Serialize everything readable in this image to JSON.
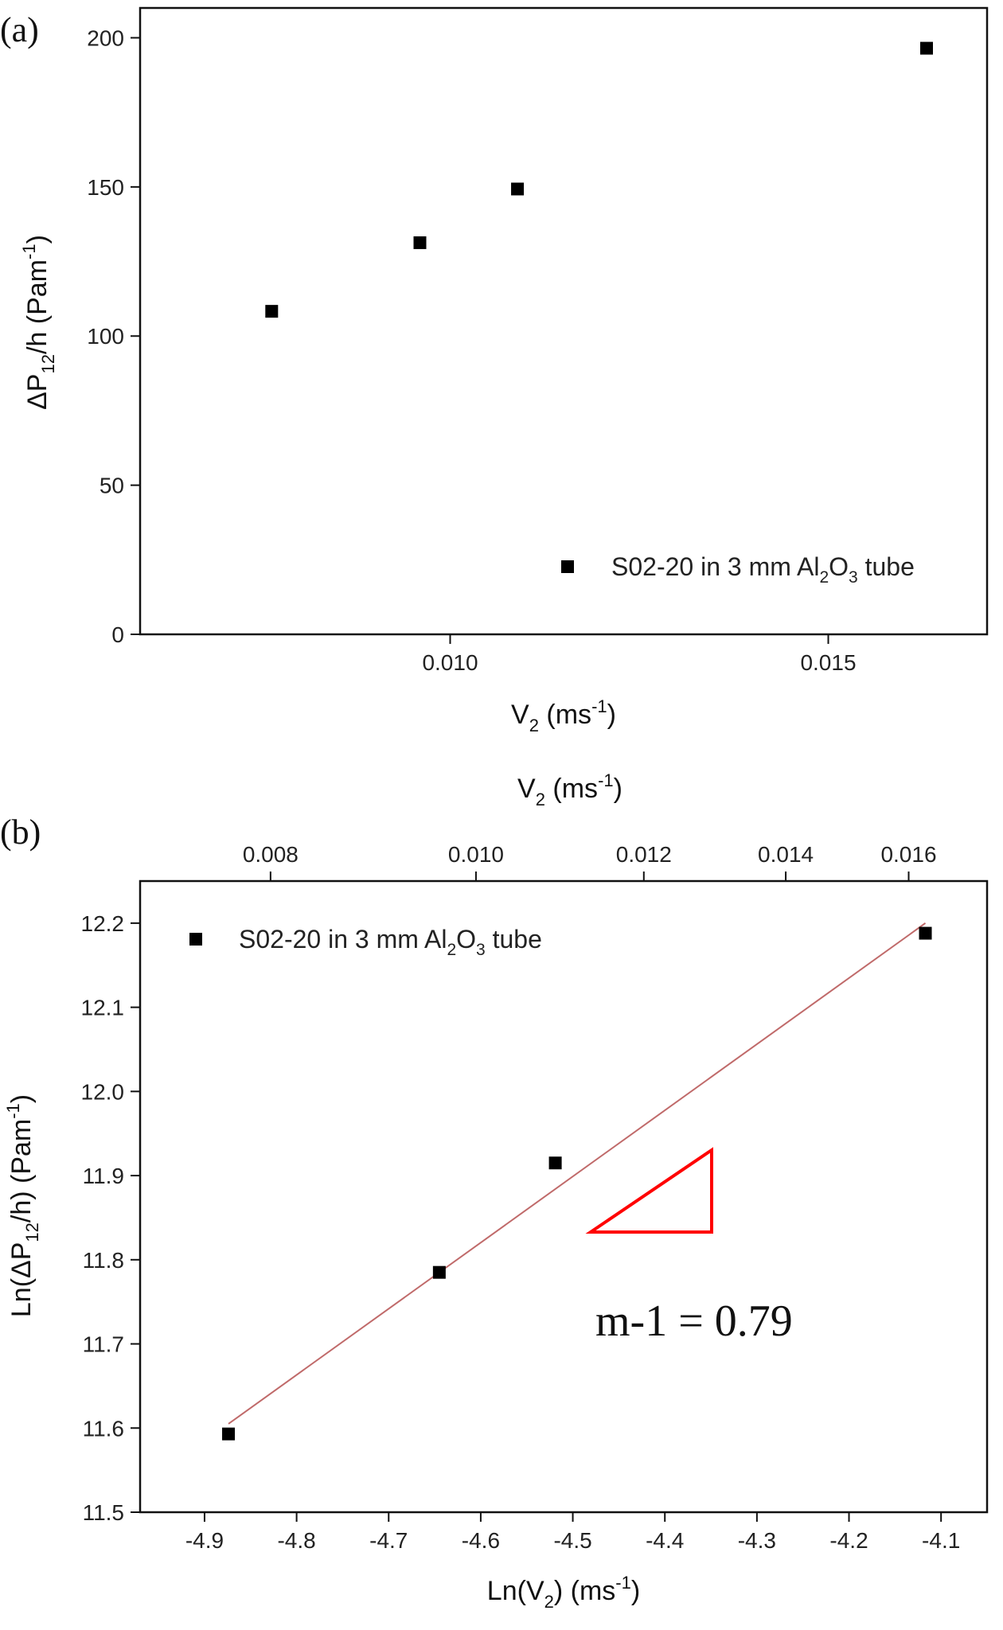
{
  "figure": {
    "panel_a_label": "(a)",
    "panel_b_label": "(b)"
  },
  "chart_data": [
    {
      "type": "scatter",
      "panel": "(a)",
      "xlabel": {
        "base": "V",
        "sub": "2",
        "tail": " (ms",
        "sup": "-1",
        "close": ")"
      },
      "ylabel": {
        "pre": "ΔP",
        "sub": "12",
        "mid": "/h (Pam",
        "sup": "-1",
        "close": ")"
      },
      "xlim": [
        0.0059,
        0.0171
      ],
      "ylim": [
        0,
        210
      ],
      "xticks": [
        0.01,
        0.015
      ],
      "xtick_labels": [
        "0.010",
        "0.015"
      ],
      "yticks": [
        0,
        50,
        100,
        150,
        200
      ],
      "ytick_labels": [
        "0",
        "50",
        "100",
        "150",
        "200"
      ],
      "legend_placement": "bottom-right",
      "series": [
        {
          "name": {
            "a": "S02-20 in 3 mm Al",
            "s1": "2",
            "b": "O",
            "s2": "3",
            "c": " tube"
          },
          "color": "#000000",
          "marker": "square",
          "x": [
            0.00764,
            0.0096,
            0.01089,
            0.0163
          ],
          "y": [
            108.3,
            131.3,
            149.3,
            196.5
          ]
        }
      ]
    },
    {
      "type": "scatter",
      "panel": "(b)",
      "xlabel": {
        "pre": "Ln(V",
        "sub": "2",
        "tail": ") (ms",
        "sup": "-1",
        "close": ")"
      },
      "ylabel": {
        "pre": "Ln(ΔP",
        "sub": "12",
        "mid": "/h) (Pam",
        "sup": "-1",
        "close": ")"
      },
      "top_xlabel": {
        "base": "V",
        "sub": "2",
        "tail": " (ms",
        "sup": "-1",
        "close": ")"
      },
      "xlim": [
        -4.97,
        -4.05
      ],
      "ylim": [
        11.5,
        12.25
      ],
      "xticks": [
        -4.9,
        -4.8,
        -4.7,
        -4.6,
        -4.5,
        -4.4,
        -4.3,
        -4.2,
        -4.1
      ],
      "xtick_labels": [
        "-4.9",
        "-4.8",
        "-4.7",
        "-4.6",
        "-4.5",
        "-4.4",
        "-4.3",
        "-4.2",
        "-4.1"
      ],
      "yticks": [
        11.5,
        11.6,
        11.7,
        11.8,
        11.9,
        12.0,
        12.1,
        12.2
      ],
      "ytick_labels": [
        "11.5",
        "11.6",
        "11.7",
        "11.8",
        "11.9",
        "12.0",
        "12.1",
        "12.2"
      ],
      "top_xticks": [
        0.008,
        0.01,
        0.012,
        0.014,
        0.016
      ],
      "top_xtick_labels": [
        "0.008",
        "0.010",
        "0.012",
        "0.014",
        "0.016"
      ],
      "legend_placement": "top-left",
      "series": [
        {
          "name": {
            "a": "S02-20 in 3 mm Al",
            "s1": "2",
            "b": "O",
            "s2": "3",
            "c": " tube"
          },
          "color": "#000000",
          "marker": "square",
          "x": [
            -4.874,
            -4.645,
            -4.519,
            -4.117
          ],
          "y": [
            11.593,
            11.785,
            11.915,
            12.188
          ]
        }
      ],
      "fit_line": {
        "color": "#c06a6a",
        "x": [
          -4.874,
          -4.117
        ],
        "y": [
          11.605,
          12.2
        ]
      },
      "slope_triangle_color": "#ff0000",
      "annotation": "m-1 = 0.79"
    }
  ]
}
